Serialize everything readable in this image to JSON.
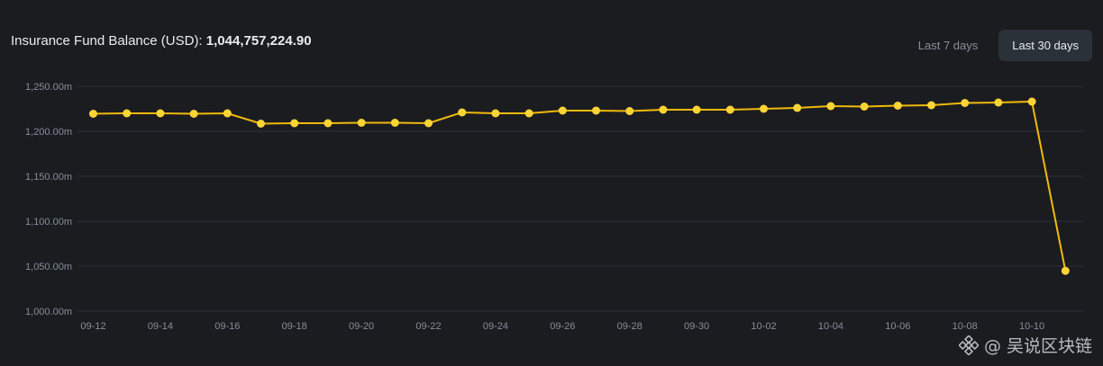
{
  "header": {
    "title_label": "Insurance Fund Balance (USD):",
    "title_value": "1,044,757,224.90"
  },
  "range_buttons": {
    "last_7_label": "Last 7 days",
    "last_30_label": "Last 30 days",
    "selected": "Last 30 days"
  },
  "watermark": {
    "icon": "binance-diamond-icon",
    "text": "@ 吴说区块链"
  },
  "colors": {
    "background": "#1b1c20",
    "line": "#f0b90b",
    "point": "#fcd535",
    "grid": "#2b2f36",
    "tick_text": "#848e9c"
  },
  "chart_data": {
    "type": "line",
    "title": "Insurance Fund Balance (USD): 1,044,757,224.90",
    "xlabel": "",
    "ylabel": "",
    "ylim": [
      1000,
      1250
    ],
    "y_ticks": [
      1000,
      1050,
      1100,
      1150,
      1200,
      1250
    ],
    "y_tick_labels": [
      "1,000.00m",
      "1,050.00m",
      "1,100.00m",
      "1,150.00m",
      "1,200.00m",
      "1,250.00m"
    ],
    "x": [
      "09-12",
      "09-13",
      "09-14",
      "09-15",
      "09-16",
      "09-17",
      "09-18",
      "09-19",
      "09-20",
      "09-21",
      "09-22",
      "09-23",
      "09-24",
      "09-25",
      "09-26",
      "09-27",
      "09-28",
      "09-29",
      "09-30",
      "10-01",
      "10-02",
      "10-03",
      "10-04",
      "10-05",
      "10-06",
      "10-07",
      "10-08",
      "10-09",
      "10-10",
      "10-11"
    ],
    "x_tick_labels": [
      "09-12",
      "09-14",
      "09-16",
      "09-18",
      "09-20",
      "09-22",
      "09-24",
      "09-26",
      "09-28",
      "09-30",
      "10-02",
      "10-04",
      "10-06",
      "10-08",
      "10-10"
    ],
    "series": [
      {
        "values": [
          1219.5,
          1220,
          1220,
          1219.5,
          1220,
          1208.5,
          1209,
          1209,
          1209.5,
          1209.5,
          1209,
          1221,
          1220,
          1220,
          1223,
          1223,
          1222.5,
          1224,
          1224,
          1224,
          1225,
          1226,
          1228,
          1227.5,
          1228.5,
          1229,
          1231.5,
          1232,
          1233,
          1044.76
        ]
      }
    ],
    "grid": true,
    "legend": "none"
  }
}
